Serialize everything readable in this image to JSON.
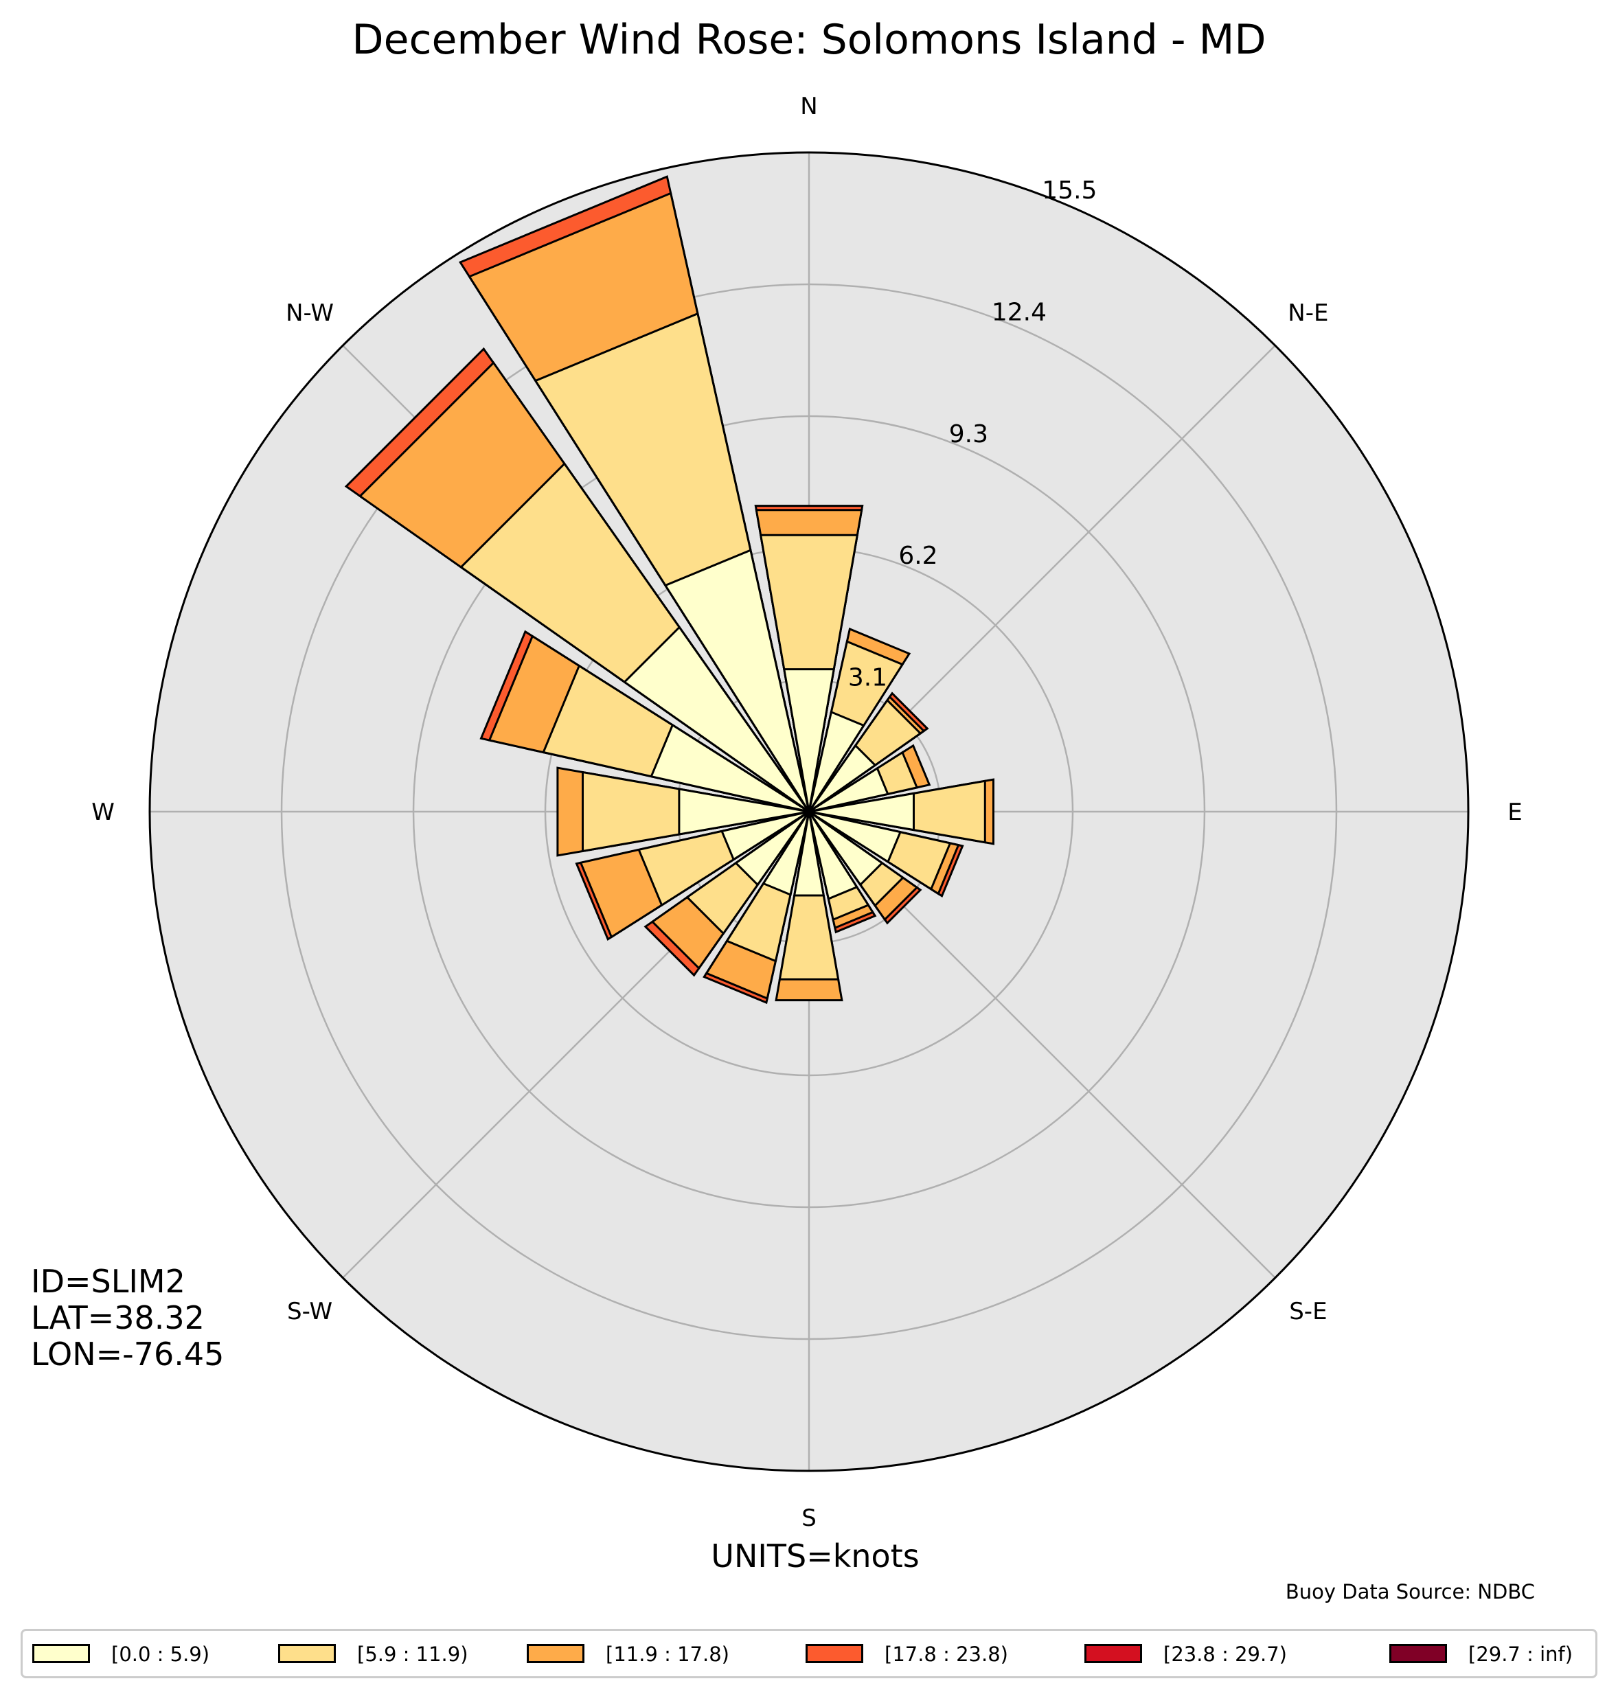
{
  "chart_data": {
    "type": "windrose",
    "title": "December Wind Rose: Solomons Island - MD",
    "direction_labels": [
      "N",
      "N-E",
      "E",
      "S-E",
      "S",
      "S-W",
      "W",
      "N-W"
    ],
    "radial_ticks": [
      3.1,
      6.2,
      9.3,
      12.4,
      15.5
    ],
    "rmax": 15.5,
    "units_text": "UNITS=knots",
    "source_text": "Buoy Data Source: NDBC",
    "station": {
      "id": "ID=SLIM2",
      "lat": "LAT=38.32",
      "lon": "LON=-76.45"
    },
    "bins": [
      {
        "label": "[0.0 : 5.9)",
        "color": "#ffffcc"
      },
      {
        "label": "[5.9 : 11.9)",
        "color": "#fedf8b"
      },
      {
        "label": "[11.9 : 17.8)",
        "color": "#feab49"
      },
      {
        "label": "[17.8 : 23.8)",
        "color": "#fc5b2e"
      },
      {
        "label": "[23.8 : 29.7)",
        "color": "#d41020"
      },
      {
        "label": "[29.7 : inf)",
        "color": "#800026"
      }
    ],
    "sectors": [
      {
        "direction_deg": 0.0,
        "cumulative": [
          3.4,
          6.6,
          7.2,
          7.3,
          7.3,
          7.3
        ]
      },
      {
        "direction_deg": 22.5,
        "cumulative": [
          2.4,
          4.1,
          4.4,
          4.4,
          4.4,
          4.4
        ]
      },
      {
        "direction_deg": 45.0,
        "cumulative": [
          1.9,
          3.2,
          3.3,
          3.4,
          3.4,
          3.4
        ]
      },
      {
        "direction_deg": 67.5,
        "cumulative": [
          1.9,
          2.6,
          2.9,
          2.9,
          2.9,
          2.9
        ]
      },
      {
        "direction_deg": 90.0,
        "cumulative": [
          2.5,
          4.2,
          4.4,
          4.4,
          4.4,
          4.4
        ]
      },
      {
        "direction_deg": 112.5,
        "cumulative": [
          2.2,
          3.4,
          3.6,
          3.7,
          3.7,
          3.7
        ]
      },
      {
        "direction_deg": 135.0,
        "cumulative": [
          2.1,
          2.7,
          3.1,
          3.2,
          3.2,
          3.2
        ]
      },
      {
        "direction_deg": 157.5,
        "cumulative": [
          2.1,
          2.6,
          2.8,
          2.9,
          2.9,
          2.9
        ]
      },
      {
        "direction_deg": 180.0,
        "cumulative": [
          2.0,
          4.0,
          4.5,
          4.5,
          4.5,
          4.5
        ]
      },
      {
        "direction_deg": 202.5,
        "cumulative": [
          2.0,
          3.6,
          4.5,
          4.6,
          4.6,
          4.6
        ]
      },
      {
        "direction_deg": 225.0,
        "cumulative": [
          2.1,
          3.5,
          4.5,
          4.7,
          4.7,
          4.7
        ]
      },
      {
        "direction_deg": 247.5,
        "cumulative": [
          2.1,
          4.1,
          5.5,
          5.6,
          5.6,
          5.6
        ]
      },
      {
        "direction_deg": 270.0,
        "cumulative": [
          3.1,
          5.4,
          6.0,
          6.0,
          6.0,
          6.0
        ]
      },
      {
        "direction_deg": 292.5,
        "cumulative": [
          3.8,
          6.4,
          7.7,
          7.9,
          7.9,
          7.9
        ]
      },
      {
        "direction_deg": 315.0,
        "cumulative": [
          5.3,
          10.0,
          12.9,
          13.3,
          13.3,
          13.3
        ]
      },
      {
        "direction_deg": 337.5,
        "cumulative": [
          6.3,
          12.0,
          14.9,
          15.3,
          15.3,
          15.3
        ]
      }
    ]
  }
}
